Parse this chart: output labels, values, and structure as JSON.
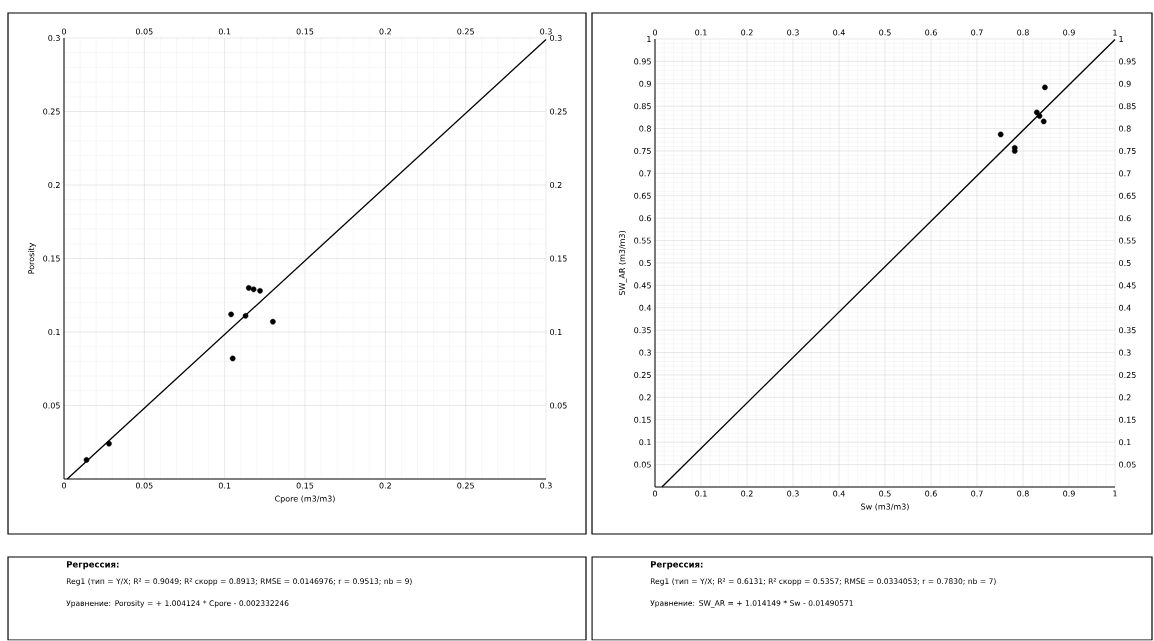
{
  "chart_data": [
    {
      "type": "scatter",
      "xlabel": "Cpore (m3/m3)",
      "ylabel": "Porosity",
      "xlim": [
        0,
        0.3
      ],
      "ylim": [
        0,
        0.3
      ],
      "xticks": [
        0,
        0.05,
        0.1,
        0.15,
        0.2,
        0.25,
        0.3
      ],
      "yticks": [
        0.05,
        0.1,
        0.15,
        0.2,
        0.25,
        0.3
      ],
      "x2lim": [
        0,
        0.3
      ],
      "x2ticks": [
        0,
        0.05,
        0.1,
        0.15,
        0.2,
        0.25,
        0.3
      ],
      "y2lim": [
        0,
        0.3
      ],
      "y2ticks": [
        0.05,
        0.1,
        0.15,
        0.2,
        0.25,
        0.3
      ],
      "grid": true,
      "marker": "circle",
      "series": [
        {
          "color": "#000000",
          "x": [
            0.014,
            0.028,
            0.104,
            0.113,
            0.115,
            0.118,
            0.122,
            0.13,
            0.105
          ],
          "values": [
            0.013,
            0.024,
            0.112,
            0.111,
            0.13,
            0.129,
            0.128,
            0.107,
            0.082
          ]
        },
        {
          "type": "line",
          "color": "#000000",
          "marker": "none",
          "line_style": "solid",
          "x": [
            0.002,
            0.3
          ],
          "values": [
            0,
            0.299
          ]
        }
      ],
      "annotations": [
        "Регрессия:",
        "Reg1 (тип = Y/X; R² = 0.9049; R² скорр = 0.8913; RMSE = 0.0146976; r = 0.9513; nb = 9)",
        "Уравнение: Porosity = + 1.004124 * Cpore - 0.002332246"
      ]
    },
    {
      "type": "scatter",
      "xlabel": "Sw (m3/m3)",
      "ylabel": "SW_AR (m3/m3)",
      "xlim": [
        0,
        1
      ],
      "ylim": [
        0,
        1
      ],
      "xticks": [
        0,
        0.1,
        0.2,
        0.3,
        0.4,
        0.5,
        0.6,
        0.7,
        0.8,
        0.9,
        1
      ],
      "yticks": [
        0.05,
        0.1,
        0.15,
        0.2,
        0.25,
        0.3,
        0.35,
        0.4,
        0.45,
        0.5,
        0.55,
        0.6,
        0.65,
        0.7,
        0.75,
        0.8,
        0.85,
        0.9,
        0.95,
        1
      ],
      "x2lim": [
        0,
        1
      ],
      "x2ticks": [
        0,
        0.1,
        0.2,
        0.3,
        0.4,
        0.5,
        0.6,
        0.7,
        0.8,
        0.9,
        1
      ],
      "y2lim": [
        0,
        1
      ],
      "y2ticks": [
        0.05,
        0.1,
        0.15,
        0.2,
        0.25,
        0.3,
        0.35,
        0.4,
        0.45,
        0.5,
        0.55,
        0.6,
        0.65,
        0.7,
        0.75,
        0.8,
        0.85,
        0.9,
        0.95,
        1
      ],
      "grid": true,
      "marker": "circle",
      "series": [
        {
          "color": "#000000",
          "x": [
            0.7515,
            0.782,
            0.782,
            0.8476,
            0.83,
            0.836,
            0.845
          ],
          "values": [
            0.787,
            0.757,
            0.75,
            0.892,
            0.836,
            0.828,
            0.816
          ]
        },
        {
          "type": "line",
          "color": "#000000",
          "marker": "none",
          "line_style": "solid",
          "x": [
            0.015,
            1
          ],
          "values": [
            0,
            0.999
          ]
        }
      ],
      "annotations": [
        "Регрессия:",
        "Reg1 (тип = Y/X; R² = 0.6131; R² скорр = 0.5357; RMSE = 0.0334053; r = 0.7830; nb = 7)",
        "Уравнение: SW_AR = + 1.014149 * Sw - 0.01490571"
      ]
    }
  ]
}
